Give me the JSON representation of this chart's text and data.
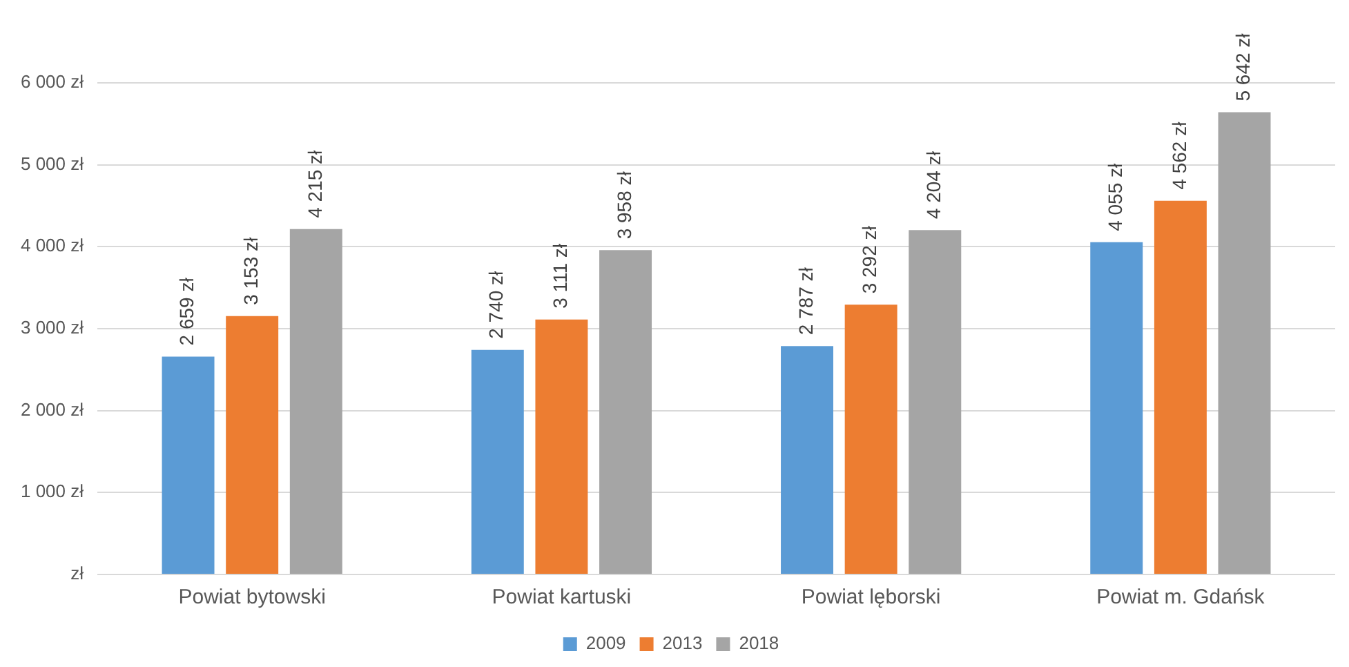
{
  "chart_data": {
    "type": "bar",
    "categories": [
      "Powiat bytowski",
      "Powiat kartuski",
      "Powiat lęborski",
      "Powiat m. Gdańsk"
    ],
    "series": [
      {
        "name": "2009",
        "color": "#5b9bd5",
        "values": [
          2659,
          2740,
          2787,
          4055
        ],
        "value_labels": [
          "2 659 zł",
          "2 740 zł",
          "2 787 zł",
          "4 055 zł"
        ]
      },
      {
        "name": "2013",
        "color": "#ed7d31",
        "values": [
          3153,
          3111,
          3292,
          4562
        ],
        "value_labels": [
          "3 153 zł",
          "3 111 zł",
          "3 292 zł",
          "4 562 zł"
        ]
      },
      {
        "name": "2018",
        "color": "#a5a5a5",
        "values": [
          4215,
          3958,
          4204,
          5642
        ],
        "value_labels": [
          "4 215 zł",
          "3 958 zł",
          "4 204 zł",
          "5 642 zł"
        ]
      }
    ],
    "ylim": [
      0,
      6000
    ],
    "yticks": [
      {
        "value": 0,
        "label": "zł"
      },
      {
        "value": 1000,
        "label": "1 000 zł"
      },
      {
        "value": 2000,
        "label": "2 000 zł"
      },
      {
        "value": 3000,
        "label": "3 000 zł"
      },
      {
        "value": 4000,
        "label": "4 000 zł"
      },
      {
        "value": 5000,
        "label": "5 000 zł"
      },
      {
        "value": 6000,
        "label": "6 000 zł"
      }
    ],
    "grid": "y",
    "legend": "bottom"
  }
}
